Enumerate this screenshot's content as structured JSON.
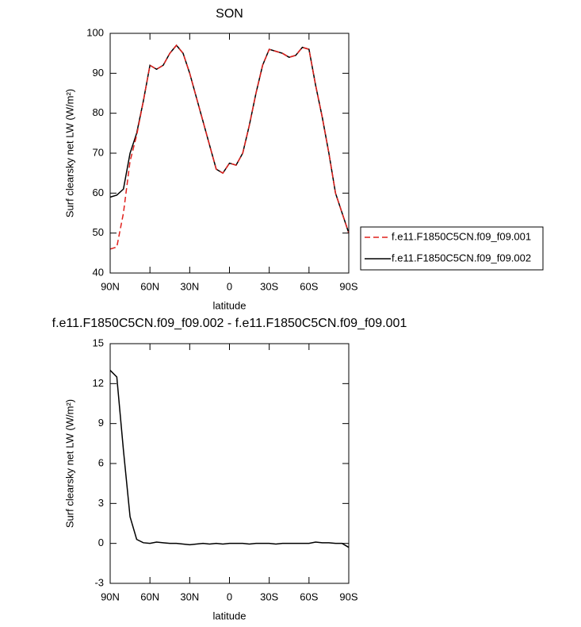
{
  "chart_data": [
    {
      "type": "line",
      "title": "SON",
      "xlabel": "latitude",
      "ylabel": "Surf clearsky net LW (W/m²)",
      "x": [
        90,
        85,
        80,
        75,
        70,
        65,
        60,
        55,
        50,
        45,
        40,
        35,
        30,
        25,
        20,
        15,
        10,
        5,
        0,
        -5,
        -10,
        -15,
        -20,
        -25,
        -30,
        -35,
        -40,
        -45,
        -50,
        -55,
        -60,
        -65,
        -70,
        -75,
        -80,
        -85,
        -90
      ],
      "series": [
        {
          "name": "f.e11.F1850C5CN.f09_f09.001",
          "color": "#e0201c",
          "dash": "dashed",
          "values": [
            46,
            46.5,
            55,
            68,
            74.5,
            83,
            92,
            91,
            92,
            95,
            97,
            95,
            90,
            84,
            78,
            72,
            66,
            65,
            67.5,
            67,
            70,
            77,
            85,
            92,
            96,
            95.5,
            95,
            94,
            94.5,
            96.5,
            96,
            87,
            79,
            70,
            60,
            55,
            50
          ]
        },
        {
          "name": "f.e11.F1850C5CN.f09_f09.002",
          "color": "#000000",
          "dash": "solid",
          "values": [
            59,
            59.5,
            61,
            70,
            75,
            83,
            92,
            91,
            92,
            95,
            97,
            95,
            90,
            84,
            78,
            72,
            66,
            65,
            67.5,
            67,
            70,
            77,
            85,
            92,
            96,
            95.5,
            95,
            94,
            94.5,
            96.5,
            96,
            87,
            79,
            70,
            60,
            55,
            50
          ]
        }
      ],
      "xlim": [
        90,
        -90
      ],
      "xticks": [
        {
          "value": 90,
          "label": "90N"
        },
        {
          "value": 60,
          "label": "60N"
        },
        {
          "value": 30,
          "label": "30N"
        },
        0,
        {
          "value": -30,
          "label": "30S"
        },
        {
          "value": -60,
          "label": "60S"
        },
        {
          "value": -90,
          "label": "90S"
        }
      ],
      "ylim": [
        40,
        100
      ],
      "yticks": [
        40,
        50,
        60,
        70,
        80,
        90,
        100
      ],
      "legend": "outside-right"
    },
    {
      "type": "line",
      "title": "f.e11.F1850C5CN.f09_f09.002 - f.e11.F1850C5CN.f09_f09.001",
      "xlabel": "latitude",
      "ylabel": "Surf clearsky net LW (W/m²)",
      "x": [
        90,
        85,
        80,
        75,
        70,
        65,
        60,
        55,
        50,
        45,
        40,
        35,
        30,
        25,
        20,
        15,
        10,
        5,
        0,
        -5,
        -10,
        -15,
        -20,
        -25,
        -30,
        -35,
        -40,
        -45,
        -50,
        -55,
        -60,
        -65,
        -70,
        -75,
        -80,
        -85,
        -90
      ],
      "series": [
        {
          "color": "#000000",
          "dash": "solid",
          "values": [
            13,
            12.5,
            7,
            2,
            0.3,
            0.05,
            0,
            0.1,
            0.05,
            0,
            0,
            -0.05,
            -0.1,
            -0.05,
            0,
            -0.05,
            0,
            -0.05,
            0,
            0,
            0,
            -0.05,
            0,
            0,
            0,
            -0.05,
            0,
            0,
            0,
            0,
            0,
            0.1,
            0.05,
            0.05,
            0,
            0,
            -0.3
          ]
        }
      ],
      "xlim": [
        90,
        -90
      ],
      "xticks": [
        {
          "value": 90,
          "label": "90N"
        },
        {
          "value": 60,
          "label": "60N"
        },
        {
          "value": 30,
          "label": "30N"
        },
        0,
        {
          "value": -30,
          "label": "30S"
        },
        {
          "value": -60,
          "label": "60S"
        },
        {
          "value": -90,
          "label": "90S"
        }
      ],
      "ylim": [
        -3,
        15
      ],
      "yticks": [
        -3,
        0,
        3,
        6,
        9,
        12,
        15
      ]
    }
  ]
}
